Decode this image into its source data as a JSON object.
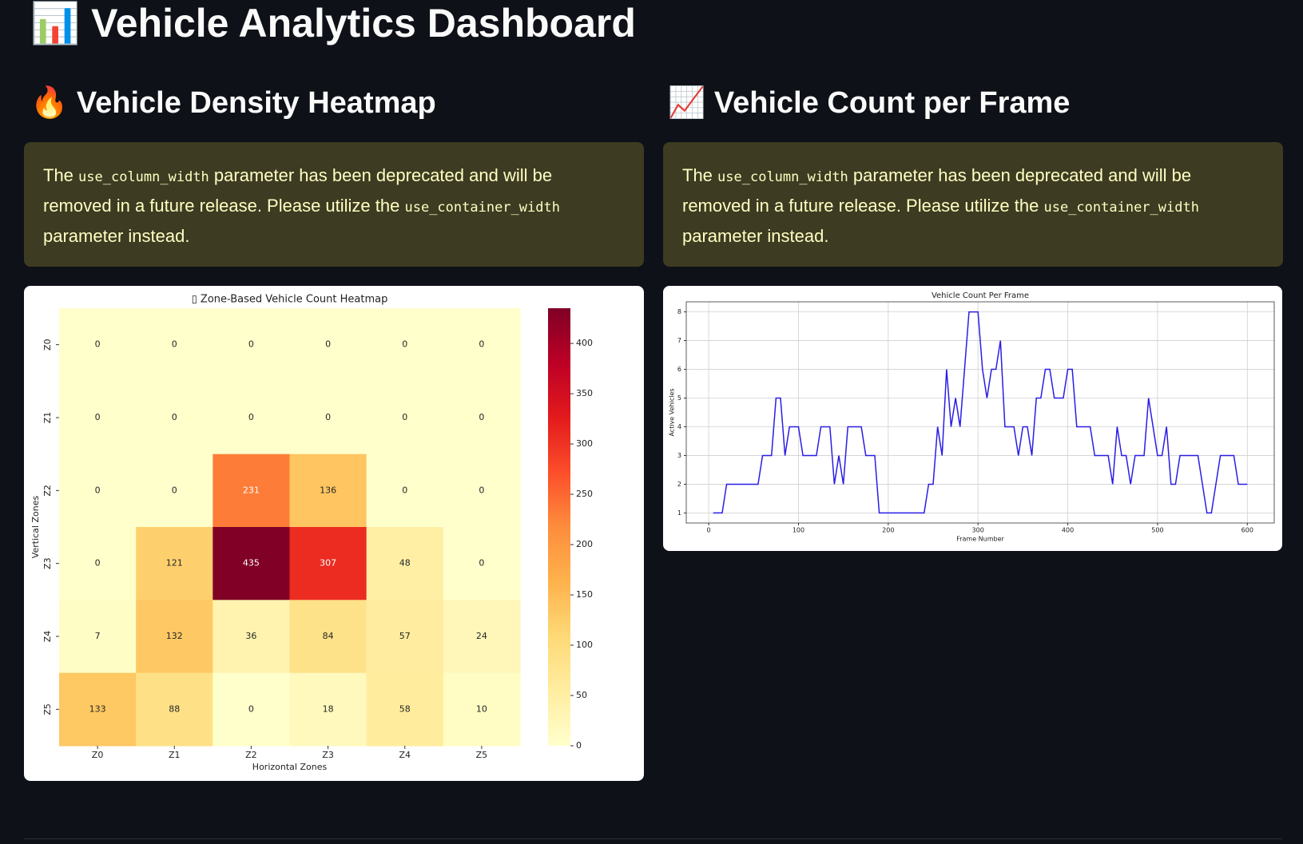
{
  "header": {
    "title": "📊 Vehicle Analytics Dashboard"
  },
  "sections": [
    {
      "title": "🔥 Vehicle Density Heatmap",
      "warning": [
        "The ",
        "use_column_width",
        " parameter has been deprecated and will be removed in a future release. Please utilize the ",
        "use_container_width",
        " parameter instead."
      ]
    },
    {
      "title": "📈 Vehicle Count per Frame",
      "warning": [
        "The ",
        "use_column_width",
        " parameter has been deprecated and will be removed in a future release. Please utilize the ",
        "use_container_width",
        " parameter instead."
      ]
    }
  ],
  "chart_data": [
    {
      "type": "heatmap",
      "title": "▯ Zone-Based Vehicle Count Heatmap",
      "xlabel": "Horizontal Zones",
      "ylabel": "Vertical Zones",
      "x_categories": [
        "Z0",
        "Z1",
        "Z2",
        "Z3",
        "Z4",
        "Z5"
      ],
      "y_categories": [
        "Z0",
        "Z1",
        "Z2",
        "Z3",
        "Z4",
        "Z5"
      ],
      "values": [
        [
          0,
          0,
          0,
          0,
          0,
          0
        ],
        [
          0,
          0,
          0,
          0,
          0,
          0
        ],
        [
          0,
          0,
          231,
          136,
          0,
          0
        ],
        [
          0,
          121,
          435,
          307,
          48,
          0
        ],
        [
          7,
          132,
          36,
          84,
          57,
          24
        ],
        [
          133,
          88,
          0,
          18,
          58,
          10
        ]
      ],
      "cmap": "YlOrRd",
      "clim": [
        0,
        435
      ],
      "colorbar_ticks": [
        0,
        50,
        100,
        150,
        200,
        250,
        300,
        350,
        400
      ]
    },
    {
      "type": "line",
      "title": "Vehicle Count Per Frame",
      "xlabel": "Frame Number",
      "ylabel": "Active Vehicles",
      "x": [
        5,
        10,
        15,
        20,
        25,
        30,
        35,
        40,
        45,
        50,
        55,
        60,
        65,
        70,
        75,
        80,
        85,
        90,
        95,
        100,
        105,
        110,
        115,
        120,
        125,
        130,
        135,
        140,
        145,
        150,
        155,
        160,
        165,
        170,
        175,
        180,
        185,
        190,
        195,
        200,
        205,
        210,
        215,
        220,
        225,
        230,
        235,
        240,
        245,
        250,
        255,
        260,
        265,
        270,
        275,
        280,
        285,
        290,
        295,
        300,
        305,
        310,
        315,
        320,
        325,
        330,
        335,
        340,
        345,
        350,
        355,
        360,
        365,
        370,
        375,
        380,
        385,
        390,
        395,
        400,
        405,
        410,
        415,
        420,
        425,
        430,
        435,
        440,
        445,
        450,
        455,
        460,
        465,
        470,
        475,
        480,
        485,
        490,
        495,
        500,
        505,
        510,
        515,
        520,
        525,
        530,
        535,
        540,
        545,
        550,
        555,
        560,
        565,
        570,
        575,
        580,
        585,
        590,
        595,
        600
      ],
      "values": [
        1,
        1,
        1,
        2,
        2,
        2,
        2,
        2,
        2,
        2,
        2,
        3,
        3,
        3,
        5,
        5,
        3,
        4,
        4,
        4,
        3,
        3,
        3,
        3,
        4,
        4,
        4,
        2,
        3,
        2,
        4,
        4,
        4,
        4,
        3,
        3,
        3,
        1,
        1,
        1,
        1,
        1,
        1,
        1,
        1,
        1,
        1,
        1,
        2,
        2,
        4,
        3,
        6,
        4,
        5,
        4,
        6,
        8,
        8,
        8,
        6,
        5,
        6,
        6,
        7,
        4,
        4,
        4,
        3,
        4,
        4,
        3,
        5,
        5,
        6,
        6,
        5,
        5,
        5,
        6,
        6,
        4,
        4,
        4,
        4,
        3,
        3,
        3,
        3,
        2,
        4,
        3,
        3,
        2,
        3,
        3,
        3,
        5,
        4,
        3,
        3,
        4,
        2,
        2,
        3,
        3,
        3,
        3,
        3,
        2,
        1,
        1,
        2,
        3,
        3,
        3,
        3,
        2,
        2,
        2
      ],
      "color": "#2a1de6",
      "xlim": [
        -25,
        630
      ],
      "ylim": [
        0.65,
        8.35
      ],
      "xticks": [
        0,
        100,
        200,
        300,
        400,
        500,
        600
      ],
      "yticks": [
        1,
        2,
        3,
        4,
        5,
        6,
        7,
        8
      ],
      "grid": true
    }
  ]
}
